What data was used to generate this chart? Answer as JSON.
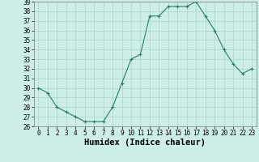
{
  "x": [
    0,
    1,
    2,
    3,
    4,
    5,
    6,
    7,
    8,
    9,
    10,
    11,
    12,
    13,
    14,
    15,
    16,
    17,
    18,
    19,
    20,
    21,
    22,
    23
  ],
  "y": [
    30,
    29.5,
    28,
    27.5,
    27,
    26.5,
    26.5,
    26.5,
    28,
    30.5,
    33,
    33.5,
    37.5,
    37.5,
    38.5,
    38.5,
    38.5,
    39,
    37.5,
    36,
    34,
    32.5,
    31.5,
    32
  ],
  "xlabel": "Humidex (Indice chaleur)",
  "ylabel": "",
  "ylim": [
    26,
    39
  ],
  "xlim": [
    -0.5,
    23.5
  ],
  "yticks": [
    26,
    27,
    28,
    29,
    30,
    31,
    32,
    33,
    34,
    35,
    36,
    37,
    38,
    39
  ],
  "xticks": [
    0,
    1,
    2,
    3,
    4,
    5,
    6,
    7,
    8,
    9,
    10,
    11,
    12,
    13,
    14,
    15,
    16,
    17,
    18,
    19,
    20,
    21,
    22,
    23
  ],
  "line_color": "#2d7a6a",
  "marker_color": "#2d7a6a",
  "bg_color": "#cceee6",
  "grid_color": "#aad4cc",
  "xlabel_fontsize": 7.5,
  "tick_fontsize": 5.5
}
